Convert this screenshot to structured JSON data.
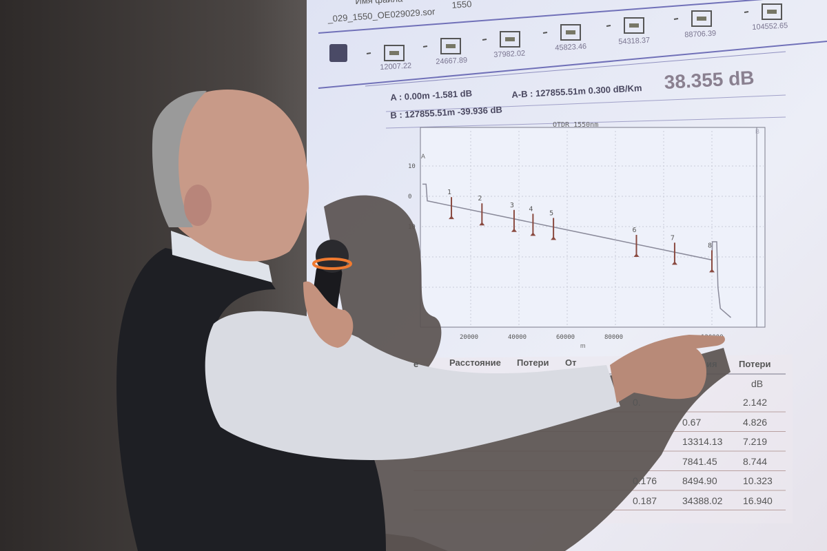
{
  "screen": {
    "file_label": "Имя файла",
    "file_name": "_029_1550_OE029029.sor",
    "wavelength": "1550",
    "event_distances": [
      "12007.22",
      "24667.89",
      "37982.02",
      "45823.46",
      "54318.37",
      "88706.39",
      "104552.65"
    ],
    "cursor_a": "A : 0.00m -1.581 dB",
    "cursor_b": "B : 127855.51m -39.936 dB",
    "cursor_ab": "A-B : 127855.51m 0.300 dB/Km",
    "total_loss": "38.355 dB",
    "table": {
      "headers": [
        "е",
        "Расстояние",
        "Потери",
        "От",
        "ия",
        "Потери"
      ],
      "unit": "dB",
      "rows": [
        {
          "a": "0.",
          "b": "",
          "c": "2.142"
        },
        {
          "a": "",
          "b": "0.67",
          "c": "4.826"
        },
        {
          "a": "",
          "b": "13314.13",
          "c": "7.219"
        },
        {
          "a": "",
          "b": "7841.45",
          "c": "8.744"
        },
        {
          "a": "0.176",
          "b": "8494.90",
          "c": "10.323"
        },
        {
          "a": "0.187",
          "b": "34388.02",
          "c": "16.940"
        }
      ]
    }
  },
  "chart_data": {
    "type": "line",
    "title": "OTDR 1550nm",
    "xlabel": "m",
    "ylabel": "",
    "xlim": [
      0,
      130000
    ],
    "ylim": [
      -43,
      20
    ],
    "x_ticks": [
      "20000",
      "40000",
      "60000",
      "80000",
      "120000"
    ],
    "y_ticks": [
      "10",
      "0",
      "10"
    ],
    "grid": true,
    "trace": [
      [
        0,
        4
      ],
      [
        1500,
        4
      ],
      [
        2000,
        -1.5
      ],
      [
        120000,
        -21
      ],
      [
        120200,
        -15
      ],
      [
        122000,
        -15
      ],
      [
        122500,
        -30
      ],
      [
        123500,
        -37
      ],
      [
        127855,
        -40
      ]
    ],
    "events": [
      {
        "label": "1",
        "x": 12007
      },
      {
        "label": "2",
        "x": 24668
      },
      {
        "label": "3",
        "x": 37982
      },
      {
        "label": "4",
        "x": 45823
      },
      {
        "label": "5",
        "x": 54318
      },
      {
        "label": "6",
        "x": 88706
      },
      {
        "label": "7",
        "x": 104553
      },
      {
        "label": "8",
        "x": 120000
      }
    ],
    "cursor_labels": [
      "A",
      "B"
    ],
    "colors": {
      "trace": "#8a8a9a",
      "event": "#8a4a40",
      "grid": "#c8ccd8"
    }
  }
}
